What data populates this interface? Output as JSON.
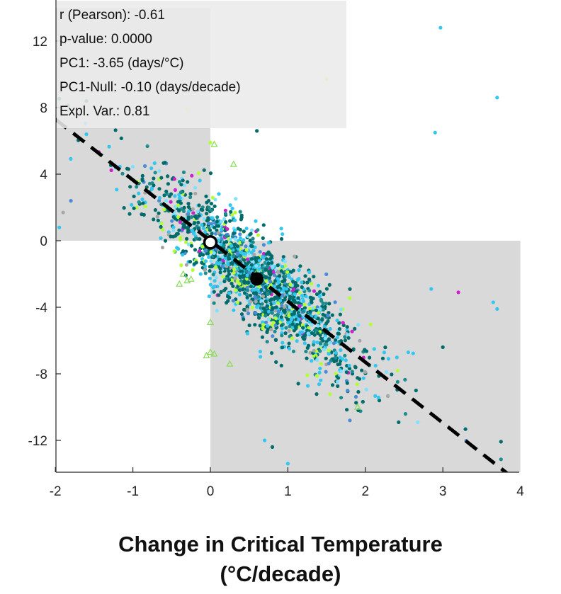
{
  "chart_data": {
    "type": "scatter",
    "xlabel_line1": "Change in Critical Temperature",
    "xlabel_line2": "(°C/decade)",
    "ylabel": "",
    "xlim": [
      -2,
      4
    ],
    "ylim": [
      -14,
      14
    ],
    "xticks": [
      {
        "v": -2,
        "label": "-2"
      },
      {
        "v": -1,
        "label": "-1"
      },
      {
        "v": 0,
        "label": "0"
      },
      {
        "v": 1,
        "label": "1"
      },
      {
        "v": 2,
        "label": "2"
      },
      {
        "v": 3,
        "label": "3"
      },
      {
        "v": 4,
        "label": "4"
      }
    ],
    "yticks": [
      {
        "v": 12,
        "label": "12"
      },
      {
        "v": 8,
        "label": "8"
      },
      {
        "v": 4,
        "label": "4"
      },
      {
        "v": 0,
        "label": "0"
      },
      {
        "v": -4,
        "label": "-4"
      },
      {
        "v": -8,
        "label": "-8"
      },
      {
        "v": -12,
        "label": "-12"
      }
    ],
    "stats": [
      "r (Pearson): -0.61",
      "p-value: 0.0000",
      "PC1: -3.65 (days/°C)",
      "PC1-Null: -0.10 (days/decade)",
      "Expl. Var.: 0.81"
    ],
    "shaded_quadrants": [
      {
        "x": [
          -2,
          0
        ],
        "y": [
          0,
          14
        ]
      },
      {
        "x": [
          0,
          4
        ],
        "y": [
          -14,
          0
        ]
      }
    ],
    "regression_line": {
      "slope": -3.65,
      "intercept": 0.0,
      "style": "dashed",
      "color": "#000000"
    },
    "null_point": {
      "x": 0.0,
      "y": -0.1,
      "fill": "#ffffff",
      "stroke": "#000000"
    },
    "mean_point": {
      "x": 0.6,
      "y": -2.3,
      "fill": "#000000"
    },
    "grid": false,
    "colors": {
      "shade": "#d9d9d9",
      "series": [
        "#006b6b",
        "#1e8c8c",
        "#33c6ee",
        "#7fe0ff",
        "#b3ff33",
        "#4a8ad6",
        "#a6a6a6",
        "#cc22cc"
      ],
      "triangle": "#88dd55"
    },
    "scatter_summary": {
      "n_points": 1800,
      "center": [
        0.6,
        -2.3
      ],
      "slope": -3.65,
      "x_spread": 0.55,
      "residual_spread": 1.35
    },
    "outliers": [
      {
        "x": 2.97,
        "y": 12.8,
        "color": "#33c6ee"
      },
      {
        "x": 3.7,
        "y": 8.6,
        "color": "#33c6ee"
      },
      {
        "x": 2.9,
        "y": 6.5,
        "color": "#33c6ee"
      },
      {
        "x": 1.5,
        "y": 9.7,
        "color": "#b3ff33"
      },
      {
        "x": 0.6,
        "y": 6.6,
        "color": "#006b6b"
      },
      {
        "x": 1.0,
        "y": -13.4,
        "color": "#33c6ee"
      },
      {
        "x": 0.7,
        "y": -12.0,
        "color": "#33c6ee"
      },
      {
        "x": 0.8,
        "y": -12.4,
        "color": "#006b6b"
      },
      {
        "x": 1.8,
        "y": -10.8,
        "color": "#4a8ad6"
      },
      {
        "x": -1.9,
        "y": 1.7,
        "color": "#a6a6a6"
      },
      {
        "x": -1.95,
        "y": 0.8,
        "color": "#33c6ee"
      },
      {
        "x": 3.65,
        "y": -3.7,
        "color": "#33c6ee"
      },
      {
        "x": 3.2,
        "y": -3.1,
        "color": "#cc22cc"
      },
      {
        "x": 3.7,
        "y": -4.1,
        "color": "#33c6ee"
      },
      {
        "x": 2.85,
        "y": -2.9,
        "color": "#33c6ee"
      },
      {
        "x": -1.8,
        "y": 2.4,
        "color": "#4a8ad6"
      },
      {
        "x": -0.3,
        "y": 7.9,
        "color": "#b3ff33"
      },
      {
        "x": 0.0,
        "y": 5.9,
        "color": "#b3ff33"
      },
      {
        "x": -1.6,
        "y": 6.4,
        "color": "#33c6ee"
      },
      {
        "x": 3.0,
        "y": -6.4,
        "color": "#006b6b"
      }
    ],
    "triangles": [
      {
        "x": 0.0,
        "y": -6.7
      },
      {
        "x": -0.05,
        "y": -6.9
      },
      {
        "x": 0.05,
        "y": -6.8
      },
      {
        "x": -0.35,
        "y": -2.0
      },
      {
        "x": -0.3,
        "y": -2.4
      },
      {
        "x": 0.0,
        "y": -4.9
      },
      {
        "x": 0.25,
        "y": -7.4
      },
      {
        "x": 1.9,
        "y": -10.0
      },
      {
        "x": 0.05,
        "y": 5.8
      },
      {
        "x": 0.3,
        "y": 4.6
      },
      {
        "x": -0.25,
        "y": -2.3
      },
      {
        "x": 0.6,
        "y": -1.9
      },
      {
        "x": -0.4,
        "y": -2.6
      },
      {
        "x": 1.0,
        "y": -4.4
      }
    ]
  }
}
